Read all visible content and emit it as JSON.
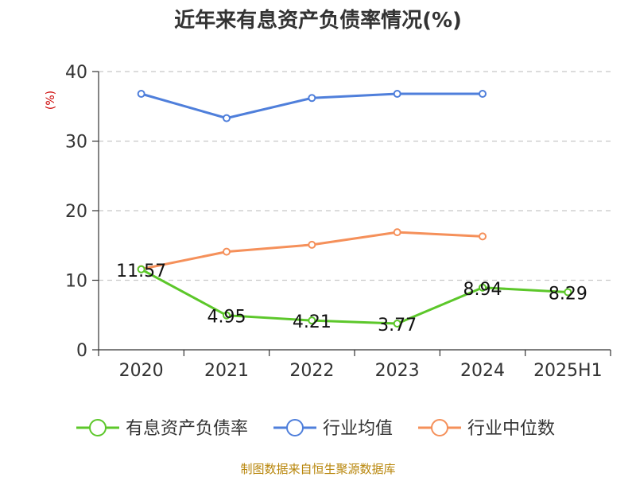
{
  "chart_data": {
    "type": "line",
    "title": "近年来有息资产负债率情况(%)",
    "ylabel": "(%)",
    "xlabel": "",
    "categories": [
      "2020",
      "2021",
      "2022",
      "2023",
      "2024",
      "2025H1"
    ],
    "ylim": [
      0,
      40
    ],
    "yticks": [
      0,
      10,
      20,
      30,
      40
    ],
    "grid": true,
    "legend_position": "bottom",
    "series": [
      {
        "name": "有息资产负债率",
        "color": "#5cc72a",
        "values": [
          11.57,
          4.95,
          4.21,
          3.77,
          8.94,
          8.29
        ],
        "labels": [
          "11.57",
          "4.95",
          "4.21",
          "3.77",
          "8.94",
          "8.29"
        ]
      },
      {
        "name": "行业均值",
        "color": "#4f7fdb",
        "values": [
          36.8,
          33.3,
          36.2,
          36.8,
          36.8,
          null
        ]
      },
      {
        "name": "行业中位数",
        "color": "#f5905a",
        "values": [
          11.6,
          14.1,
          15.1,
          16.9,
          16.3,
          null
        ]
      }
    ]
  },
  "source": "制图数据来自恒生聚源数据库"
}
